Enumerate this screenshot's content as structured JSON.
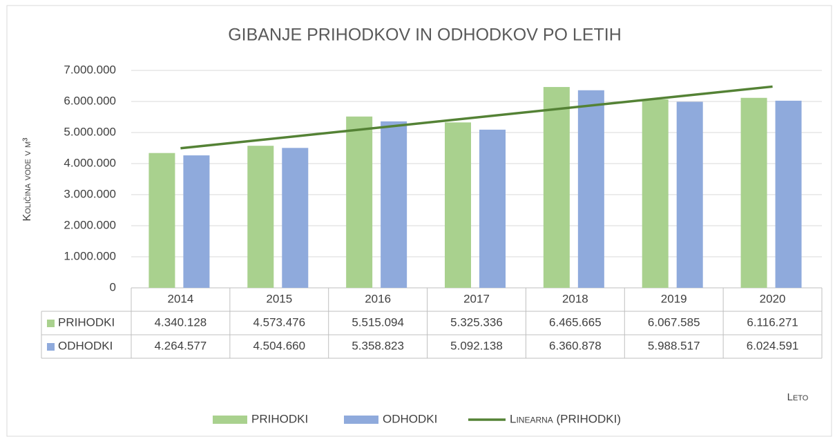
{
  "chart_data": {
    "type": "bar",
    "title": "GIBANJE PRIHODKOV IN ODHODKOV PO LETIH",
    "y_label": "Količina vode v m³",
    "x_label": "Leto",
    "categories": [
      "2014",
      "2015",
      "2016",
      "2017",
      "2018",
      "2019",
      "2020"
    ],
    "series": [
      {
        "name": "PRIHODKI",
        "color": "#a9d18e",
        "values": [
          4340128,
          4573476,
          5515094,
          5325336,
          6465665,
          6067585,
          6116271
        ],
        "value_labels": [
          "4.340.128",
          "4.573.476",
          "5.515.094",
          "5.325.336",
          "6.465.665",
          "6.067.585",
          "6.116.271"
        ]
      },
      {
        "name": "ODHODKI",
        "color": "#8faadc",
        "values": [
          4264577,
          4504660,
          5358823,
          5092138,
          6360878,
          5988517,
          6024591
        ],
        "value_labels": [
          "4.264.577",
          "4.504.660",
          "5.358.823",
          "5.092.138",
          "6.360.878",
          "5.988.517",
          "6.024.591"
        ]
      }
    ],
    "trendline": {
      "name": "Linearna (PRIHODKI)",
      "color": "#548235"
    },
    "ylim": [
      0,
      7000000
    ],
    "yticks": [
      0,
      {
        "value": 1000000,
        "label": "1.000.000"
      },
      {
        "value": 2000000,
        "label": "2.000.000"
      },
      {
        "value": 3000000,
        "label": "3.000.000"
      },
      {
        "value": 4000000,
        "label": "4.000.000"
      },
      {
        "value": 5000000,
        "label": "5.000.000"
      },
      {
        "value": 6000000,
        "label": "6.000.000"
      },
      {
        "value": 7000000,
        "label": "7.000.000"
      }
    ],
    "grid": true
  }
}
